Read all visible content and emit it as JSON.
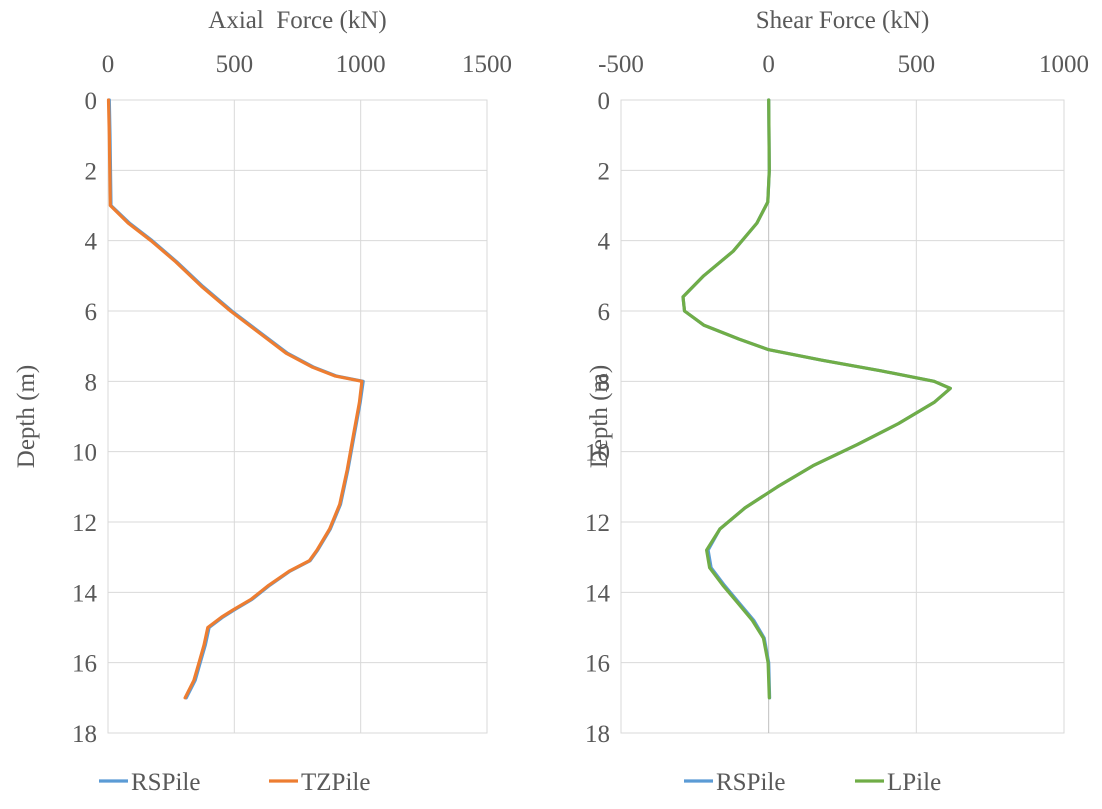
{
  "chart_data": [
    {
      "type": "line",
      "title": "",
      "xlabel": "Axial  Force (kN)",
      "ylabel": "Depth (m)",
      "xlim": [
        0,
        1500
      ],
      "ylim": [
        0,
        18
      ],
      "y_inverted": true,
      "x_axis_position": "top",
      "xticks": [
        0,
        500,
        1000,
        1500
      ],
      "yticks": [
        0,
        2,
        4,
        6,
        8,
        10,
        12,
        14,
        16,
        18
      ],
      "grid": true,
      "legend": "bottom",
      "series": [
        {
          "name": "RSPile",
          "color": "#5B9BD5",
          "points": [
            [
              5,
              0
            ],
            [
              8,
              1
            ],
            [
              10,
              2
            ],
            [
              12,
              3
            ],
            [
              85,
              3.5
            ],
            [
              175,
              4
            ],
            [
              272,
              4.6
            ],
            [
              375,
              5.3
            ],
            [
              490,
              6
            ],
            [
              600,
              6.6
            ],
            [
              710,
              7.2
            ],
            [
              815,
              7.6
            ],
            [
              905,
              7.85
            ],
            [
              1010,
              8
            ],
            [
              998,
              8.6
            ],
            [
              975,
              9.5
            ],
            [
              950,
              10.5
            ],
            [
              920,
              11.5
            ],
            [
              880,
              12.2
            ],
            [
              830,
              12.8
            ],
            [
              800,
              13.1
            ],
            [
              720,
              13.4
            ],
            [
              640,
              13.8
            ],
            [
              570,
              14.2
            ],
            [
              500,
              14.5
            ],
            [
              455,
              14.7
            ],
            [
              400,
              15
            ],
            [
              385,
              15.5
            ],
            [
              365,
              16
            ],
            [
              345,
              16.5
            ],
            [
              310,
              17
            ]
          ]
        },
        {
          "name": "TZPile",
          "color": "#ED7D31",
          "points": [
            [
              2,
              0
            ],
            [
              5,
              1
            ],
            [
              7,
              2
            ],
            [
              9,
              3
            ],
            [
              80,
              3.5
            ],
            [
              170,
              4
            ],
            [
              268,
              4.6
            ],
            [
              370,
              5.3
            ],
            [
              485,
              6
            ],
            [
              595,
              6.6
            ],
            [
              705,
              7.2
            ],
            [
              810,
              7.6
            ],
            [
              900,
              7.85
            ],
            [
              1005,
              8
            ],
            [
              995,
              8.6
            ],
            [
              972,
              9.5
            ],
            [
              947,
              10.5
            ],
            [
              917,
              11.5
            ],
            [
              877,
              12.2
            ],
            [
              827,
              12.8
            ],
            [
              797,
              13.1
            ],
            [
              717,
              13.4
            ],
            [
              636,
              13.8
            ],
            [
              566,
              14.2
            ],
            [
              495,
              14.5
            ],
            [
              450,
              14.7
            ],
            [
              395,
              15
            ],
            [
              380,
              15.5
            ],
            [
              360,
              16
            ],
            [
              340,
              16.5
            ],
            [
              305,
              17
            ]
          ]
        }
      ]
    },
    {
      "type": "line",
      "title": "",
      "xlabel": "Shear Force (kN)",
      "ylabel": "Depth (m)",
      "xlim": [
        -500,
        1000
      ],
      "ylim": [
        0,
        18
      ],
      "y_inverted": true,
      "x_axis_position": "top",
      "xticks": [
        -500,
        0,
        500,
        1000
      ],
      "yticks": [
        0,
        2,
        4,
        6,
        8,
        10,
        12,
        14,
        16,
        18
      ],
      "grid": true,
      "legend": "bottom",
      "series": [
        {
          "name": "RSPile",
          "color": "#5B9BD5",
          "points": [
            [
              0,
              0
            ],
            [
              1,
              1
            ],
            [
              2,
              2
            ],
            [
              -3,
              2.9
            ],
            [
              -40,
              3.5
            ],
            [
              -120,
              4.3
            ],
            [
              -220,
              5.0
            ],
            [
              -290,
              5.6
            ],
            [
              -285,
              6.0
            ],
            [
              -220,
              6.4
            ],
            [
              -100,
              6.8
            ],
            [
              0,
              7.1
            ],
            [
              180,
              7.4
            ],
            [
              380,
              7.7
            ],
            [
              560,
              8.0
            ],
            [
              615,
              8.2
            ],
            [
              560,
              8.6
            ],
            [
              440,
              9.2
            ],
            [
              300,
              9.8
            ],
            [
              150,
              10.4
            ],
            [
              30,
              11.0
            ],
            [
              -80,
              11.6
            ],
            [
              -165,
              12.2
            ],
            [
              -205,
              12.8
            ],
            [
              -195,
              13.3
            ],
            [
              -150,
              13.8
            ],
            [
              -100,
              14.3
            ],
            [
              -50,
              14.8
            ],
            [
              -15,
              15.3
            ],
            [
              0,
              16
            ],
            [
              3,
              17
            ]
          ]
        },
        {
          "name": "LPile",
          "color": "#70AD47",
          "points": [
            [
              0,
              0
            ],
            [
              1,
              1
            ],
            [
              2,
              2
            ],
            [
              -3,
              2.9
            ],
            [
              -40,
              3.5
            ],
            [
              -120,
              4.3
            ],
            [
              -220,
              5.0
            ],
            [
              -290,
              5.6
            ],
            [
              -285,
              6.0
            ],
            [
              -220,
              6.4
            ],
            [
              -100,
              6.8
            ],
            [
              0,
              7.1
            ],
            [
              180,
              7.4
            ],
            [
              380,
              7.7
            ],
            [
              560,
              8.0
            ],
            [
              615,
              8.2
            ],
            [
              560,
              8.6
            ],
            [
              440,
              9.2
            ],
            [
              300,
              9.8
            ],
            [
              150,
              10.4
            ],
            [
              30,
              11.0
            ],
            [
              -80,
              11.6
            ],
            [
              -165,
              12.2
            ],
            [
              -210,
              12.8
            ],
            [
              -200,
              13.3
            ],
            [
              -155,
              13.8
            ],
            [
              -105,
              14.3
            ],
            [
              -55,
              14.8
            ],
            [
              -18,
              15.3
            ],
            [
              -2,
              16
            ],
            [
              2,
              17
            ]
          ]
        }
      ]
    }
  ]
}
